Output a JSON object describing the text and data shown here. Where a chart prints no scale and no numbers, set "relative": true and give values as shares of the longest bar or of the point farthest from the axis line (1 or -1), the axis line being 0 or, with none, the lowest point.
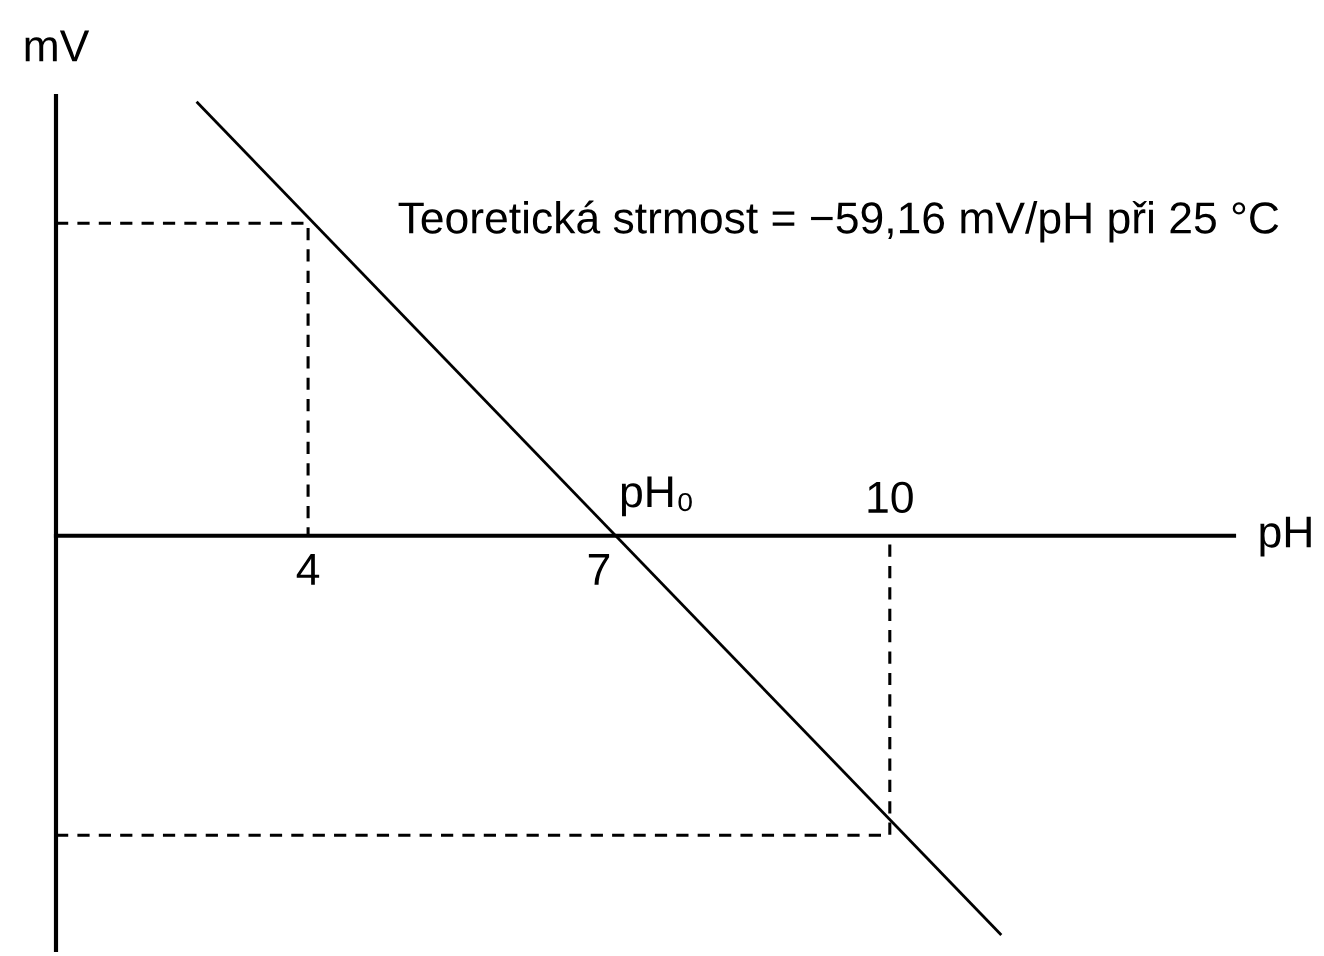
{
  "chart_data": {
    "type": "line",
    "relative": true,
    "xlabel": "pH",
    "ylabel": "mV",
    "xlim": [
      1.4,
      13.55
    ],
    "xticks": [
      4,
      7
    ],
    "annotations": [
      "Teoretická strmost = −59,16 mV/pH při 25 °C",
      {
        "text": "pH₀",
        "x": 7.15,
        "y": 0
      },
      {
        "text": "10",
        "x": 10,
        "y": 0
      }
    ],
    "series": [
      {
        "color": "#000000",
        "line_style": "solid",
        "x": [
          2.85,
          11.15
        ],
        "values": [
          1,
          -0.92
        ]
      },
      {
        "color": "#000000",
        "line_style": "dashed",
        "x": [
          1.4,
          4,
          4
        ],
        "values": [
          0.72,
          0.72,
          0
        ]
      },
      {
        "color": "#000000",
        "line_style": "dashed",
        "x": [
          1.4,
          10,
          10
        ],
        "values": [
          -0.69,
          -0.69,
          0
        ]
      }
    ]
  }
}
